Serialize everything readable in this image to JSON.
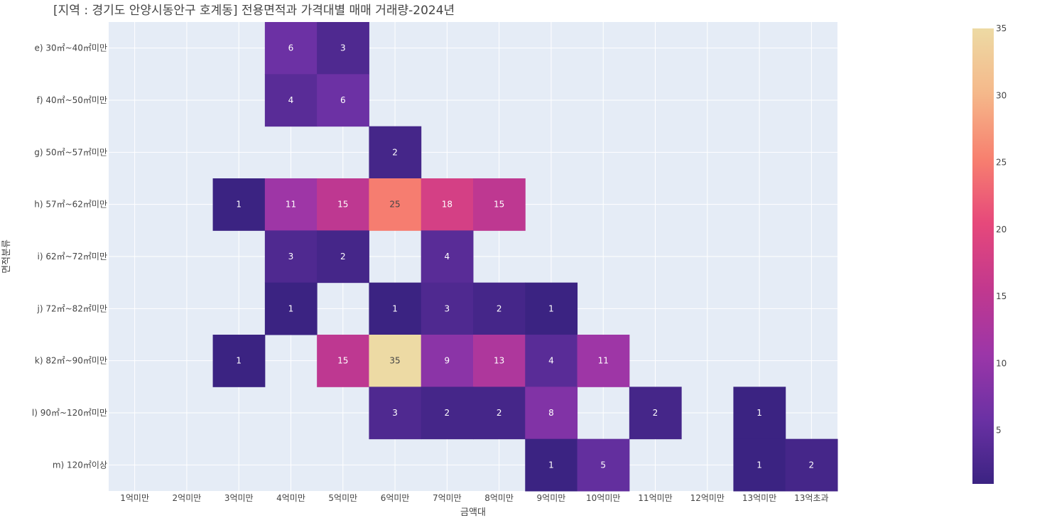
{
  "chart_data": {
    "type": "heatmap",
    "title": "[지역 : 경기도 안양시동안구 호계동] 전용면적과 가격대별 매매 거래량-2024년",
    "xlabel": "금액대",
    "ylabel": "면적분류",
    "x_categories": [
      "1억미만",
      "2억미만",
      "3억미만",
      "4억미만",
      "5억미만",
      "6억미만",
      "7억미만",
      "8억미만",
      "9억미만",
      "10억미만",
      "11억미만",
      "12억미만",
      "13억미만",
      "13억초과"
    ],
    "y_categories": [
      "e) 30㎡~40㎡미만",
      "f) 40㎡~50㎡미만",
      "g) 50㎡~57㎡미만",
      "h) 57㎡~62㎡미만",
      "i) 62㎡~72㎡미만",
      "j) 72㎡~82㎡미만",
      "k) 82㎡~90㎡미만",
      "l) 90㎡~120㎡미만",
      "m) 120㎡이상"
    ],
    "z": [
      [
        null,
        null,
        null,
        6,
        3,
        null,
        null,
        null,
        null,
        null,
        null,
        null,
        null,
        null
      ],
      [
        null,
        null,
        null,
        4,
        6,
        null,
        null,
        null,
        null,
        null,
        null,
        null,
        null,
        null
      ],
      [
        null,
        null,
        null,
        null,
        null,
        2,
        null,
        null,
        null,
        null,
        null,
        null,
        null,
        null
      ],
      [
        null,
        null,
        1,
        11,
        15,
        25,
        18,
        15,
        null,
        null,
        null,
        null,
        null,
        null
      ],
      [
        null,
        null,
        null,
        3,
        2,
        null,
        4,
        null,
        null,
        null,
        null,
        null,
        null,
        null
      ],
      [
        null,
        null,
        null,
        1,
        null,
        1,
        3,
        2,
        1,
        null,
        null,
        null,
        null,
        null
      ],
      [
        null,
        null,
        1,
        null,
        15,
        35,
        9,
        13,
        4,
        11,
        null,
        null,
        null,
        null
      ],
      [
        null,
        null,
        null,
        null,
        null,
        3,
        2,
        2,
        8,
        null,
        2,
        null,
        1,
        null
      ],
      [
        null,
        null,
        null,
        null,
        null,
        null,
        null,
        null,
        1,
        5,
        null,
        null,
        1,
        2
      ]
    ],
    "zmin": 1,
    "zmax": 35,
    "colorscale": [
      "#3b2382",
      "#6b31a4",
      "#9c36a8",
      "#c2388e",
      "#e6487b",
      "#f7806f",
      "#f5b88a",
      "#eddaa4"
    ],
    "colorbar_ticks": [
      5,
      10,
      15,
      20,
      25,
      30,
      35
    ],
    "plot_background": "#e5ecf6",
    "grid": true
  }
}
